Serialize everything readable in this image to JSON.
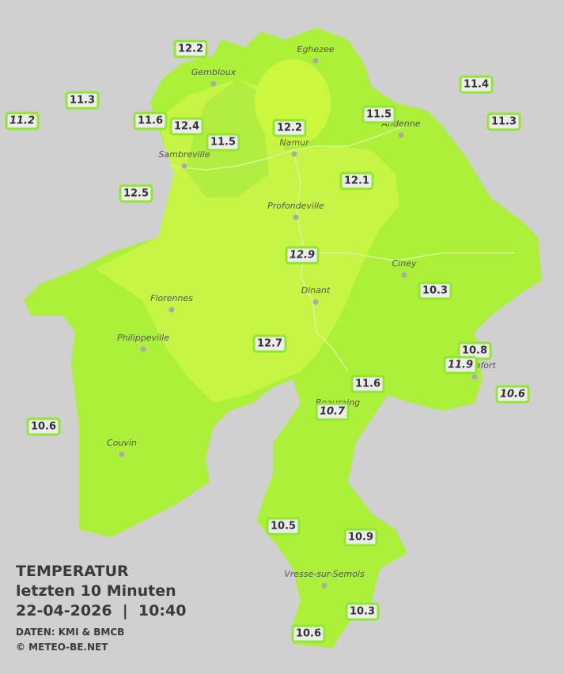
{
  "title": {
    "lines": [
      "TEMPERATUR",
      "letzten 10 Minuten",
      "22-04-2026  |  10:40"
    ],
    "source": "DATEN: KMI & BMCB",
    "copyright": "© METEO-BE.NET"
  },
  "towns": [
    {
      "label": "Eghezee"
    },
    {
      "label": "Gembloux"
    },
    {
      "label": "Andenne"
    },
    {
      "label": "Namur"
    },
    {
      "label": "Sambreville"
    },
    {
      "label": "Profondeville"
    },
    {
      "label": "Ciney"
    },
    {
      "label": "Dinant"
    },
    {
      "label": "Florennes"
    },
    {
      "label": "Philippeville"
    },
    {
      "label": "Rochefort"
    },
    {
      "label": "Beauraing"
    },
    {
      "label": "Couvin"
    },
    {
      "label": "Vresse-sur-Semois"
    }
  ],
  "stations": [
    {
      "label": "12.2"
    },
    {
      "label": "11.3"
    },
    {
      "label": "11.2"
    },
    {
      "label": "11.6"
    },
    {
      "label": "12.4"
    },
    {
      "label": "11.5"
    },
    {
      "label": "12.2"
    },
    {
      "label": "11.5"
    },
    {
      "label": "11.4"
    },
    {
      "label": "11.3"
    },
    {
      "label": "12.1"
    },
    {
      "label": "12.5"
    },
    {
      "label": "12.9"
    },
    {
      "label": "10.3"
    },
    {
      "label": "12.7"
    },
    {
      "label": "10.8"
    },
    {
      "label": "11.9"
    },
    {
      "label": "11.6"
    },
    {
      "label": "10.6"
    },
    {
      "label": "10.7"
    },
    {
      "label": "10.6"
    },
    {
      "label": "10.5"
    },
    {
      "label": "10.9"
    },
    {
      "label": "10.3"
    },
    {
      "label": "10.6"
    }
  ]
}
